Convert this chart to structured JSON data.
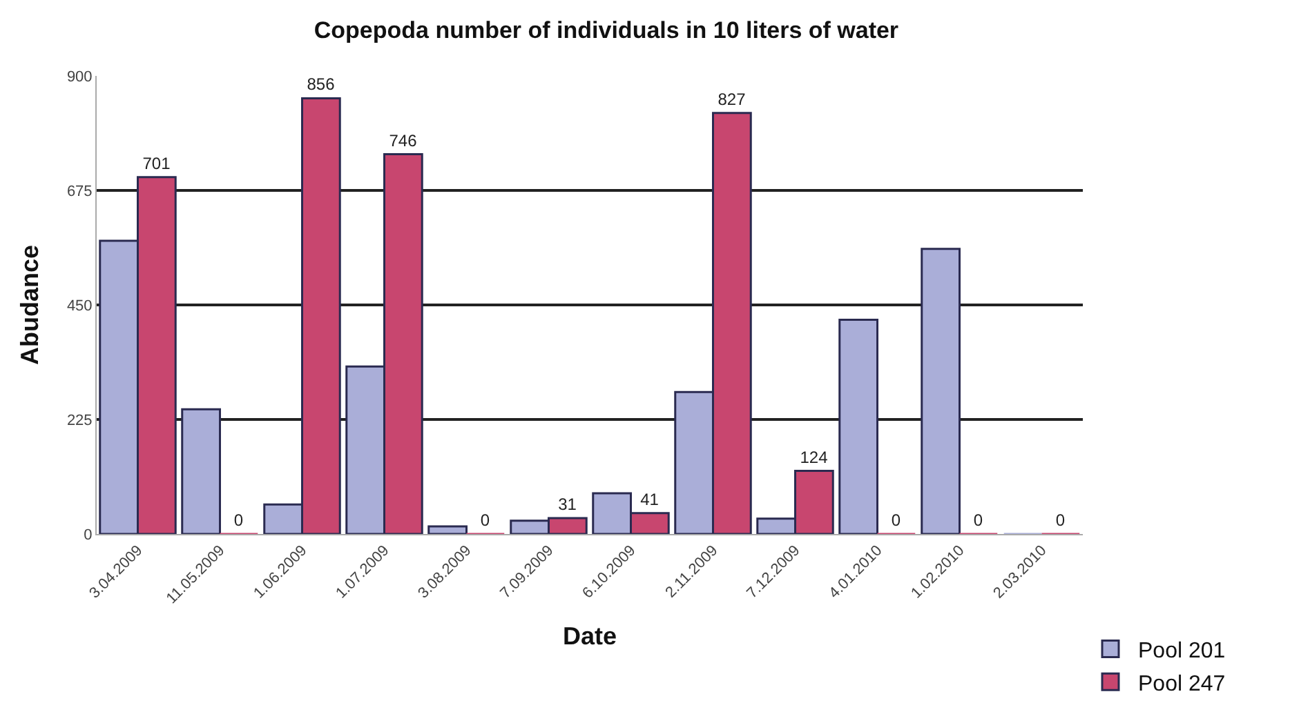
{
  "chart_data": {
    "type": "bar",
    "title": "Copepoda number of individuals in 10 liters of water",
    "xlabel": "Date",
    "ylabel": "Abudance",
    "categories": [
      "3.04.2009",
      "11.05.2009",
      "1.06.2009",
      "1.07.2009",
      "3.08.2009",
      "7.09.2009",
      "6.10.2009",
      "2.11.2009",
      "7.12.2009",
      "4.01.2010",
      "1.02.2010",
      "2.03.2010"
    ],
    "series": [
      {
        "name": "Pool 201",
        "color": "#aaaed8",
        "values": [
          576,
          245,
          58,
          329,
          15,
          26,
          80,
          279,
          30,
          421,
          560,
          0
        ]
      },
      {
        "name": "Pool 247",
        "color": "#c8466f",
        "values": [
          701,
          0,
          856,
          746,
          0,
          31,
          41,
          827,
          124,
          0,
          0,
          0
        ],
        "value_labels": [
          "701",
          "0",
          "856",
          "746",
          "0",
          "31",
          "41",
          "827",
          "124",
          "0",
          "0",
          "0"
        ]
      }
    ],
    "ylim": [
      0,
      900
    ],
    "yticks": [
      0,
      225,
      450,
      675,
      900
    ],
    "grid": "y",
    "legend": "bottom right"
  }
}
